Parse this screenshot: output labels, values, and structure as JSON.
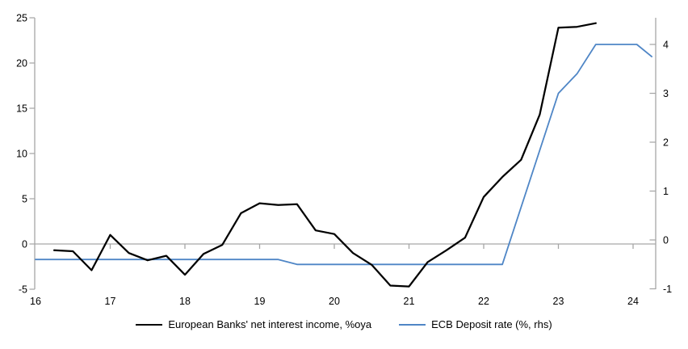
{
  "chart_data": {
    "type": "line",
    "title": "",
    "x_axis": {
      "ticks": [
        "16",
        "17",
        "18",
        "19",
        "20",
        "21",
        "22",
        "23",
        "24"
      ],
      "range": [
        16,
        24.3
      ]
    },
    "left_axis": {
      "ticks": [
        25,
        20,
        15,
        10,
        5,
        0,
        -5
      ],
      "range": [
        -5,
        25
      ]
    },
    "right_axis": {
      "ticks": [
        4,
        3,
        2,
        1,
        0,
        -1
      ],
      "range": [
        -1,
        4.55
      ]
    },
    "zero_line": 0,
    "grid": "zero-line-only",
    "legend_position": "bottom",
    "series": [
      {
        "name": "European Banks' net interest income, %oya",
        "axis": "left",
        "color": "#000000",
        "points": [
          [
            16.25,
            -0.7
          ],
          [
            16.5,
            -0.8
          ],
          [
            16.75,
            -2.9
          ],
          [
            17,
            1
          ],
          [
            17.25,
            -1
          ],
          [
            17.5,
            -1.8
          ],
          [
            17.75,
            -1.3
          ],
          [
            18,
            -3.4
          ],
          [
            18.25,
            -1.1
          ],
          [
            18.5,
            -0.1
          ],
          [
            18.75,
            3.4
          ],
          [
            19,
            4.5
          ],
          [
            19.25,
            4.3
          ],
          [
            19.5,
            4.4
          ],
          [
            19.75,
            1.5
          ],
          [
            20,
            1.1
          ],
          [
            20.25,
            -1
          ],
          [
            20.5,
            -2.3
          ],
          [
            20.75,
            -4.6
          ],
          [
            21,
            -4.7
          ],
          [
            21.25,
            -2
          ],
          [
            21.5,
            -0.7
          ],
          [
            21.75,
            0.7
          ],
          [
            22,
            5.2
          ],
          [
            22.25,
            7.4
          ],
          [
            22.5,
            9.3
          ],
          [
            22.75,
            14.3
          ],
          [
            23,
            23.9
          ],
          [
            23.25,
            24
          ],
          [
            23.5,
            24.4
          ]
        ]
      },
      {
        "name": "ECB Deposit rate (%, rhs)",
        "axis": "right",
        "color": "#4f86c6",
        "points": [
          [
            16,
            -0.4
          ],
          [
            19.25,
            -0.4
          ],
          [
            19.5,
            -0.5
          ],
          [
            22.25,
            -0.5
          ],
          [
            23,
            3
          ],
          [
            23.25,
            3.4
          ],
          [
            23.5,
            4
          ],
          [
            24.05,
            4
          ],
          [
            24.25,
            3.75
          ]
        ]
      }
    ],
    "colors": {
      "axis": "#a6a6a6",
      "text": "#000000",
      "background": "#ffffff"
    }
  }
}
